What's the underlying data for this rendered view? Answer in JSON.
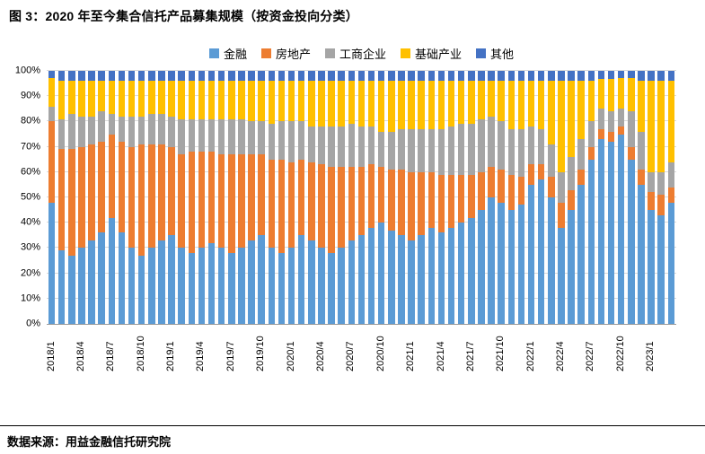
{
  "title": "图 3：2020 年至今集合信托产品募集规模（按资金投向分类）",
  "source": "数据来源：用益金融信托研究院",
  "chart_data": {
    "type": "bar",
    "stacked": true,
    "percent": true,
    "legend_position": "top",
    "grid": true,
    "ylim": [
      0,
      100
    ],
    "yticks": [
      "0%",
      "10%",
      "20%",
      "30%",
      "40%",
      "50%",
      "60%",
      "70%",
      "80%",
      "90%",
      "100%"
    ],
    "xtick_every": 3,
    "categories": [
      "2018/1",
      "2018/2",
      "2018/3",
      "2018/4",
      "2018/5",
      "2018/6",
      "2018/7",
      "2018/8",
      "2018/9",
      "2018/10",
      "2018/11",
      "2018/12",
      "2019/1",
      "2019/2",
      "2019/3",
      "2019/4",
      "2019/5",
      "2019/6",
      "2019/7",
      "2019/8",
      "2019/9",
      "2019/10",
      "2019/11",
      "2019/12",
      "2020/1",
      "2020/2",
      "2020/3",
      "2020/4",
      "2020/5",
      "2020/6",
      "2020/7",
      "2020/8",
      "2020/9",
      "2020/10",
      "2020/11",
      "2020/12",
      "2021/1",
      "2021/2",
      "2021/3",
      "2021/4",
      "2021/5",
      "2021/6",
      "2021/7",
      "2021/8",
      "2021/9",
      "2021/10",
      "2021/11",
      "2021/12",
      "2022/1",
      "2022/2",
      "2022/3",
      "2022/4",
      "2022/5",
      "2022/6",
      "2022/7",
      "2022/8",
      "2022/9",
      "2022/10",
      "2022/11",
      "2022/12",
      "2023/1",
      "2023/2",
      "2023/3"
    ],
    "series": [
      {
        "name": "金融",
        "color": "#5B9BD5",
        "values": [
          48,
          29,
          27,
          30,
          33,
          36,
          42,
          36,
          30,
          27,
          30,
          33,
          35,
          30,
          28,
          30,
          32,
          30,
          28,
          30,
          33,
          35,
          30,
          28,
          30,
          35,
          33,
          30,
          28,
          30,
          33,
          35,
          38,
          40,
          37,
          35,
          33,
          35,
          38,
          36,
          38,
          40,
          42,
          45,
          50,
          48,
          45,
          47,
          55,
          57,
          50,
          38,
          45,
          55,
          65,
          73,
          72,
          75,
          65,
          55,
          45,
          43,
          48
        ]
      },
      {
        "name": "房地产",
        "color": "#ED7D31",
        "values": [
          32,
          40,
          42,
          40,
          38,
          36,
          33,
          36,
          40,
          44,
          41,
          38,
          35,
          37,
          40,
          38,
          36,
          37,
          39,
          37,
          34,
          32,
          35,
          37,
          34,
          30,
          31,
          33,
          34,
          32,
          29,
          27,
          25,
          22,
          24,
          26,
          27,
          25,
          22,
          23,
          21,
          19,
          17,
          15,
          12,
          13,
          14,
          11,
          8,
          6,
          8,
          10,
          8,
          6,
          5,
          4,
          4,
          3,
          5,
          6,
          7,
          8,
          6
        ]
      },
      {
        "name": "工商企业",
        "color": "#A5A5A5",
        "values": [
          6,
          12,
          14,
          12,
          11,
          12,
          8,
          10,
          12,
          11,
          12,
          12,
          12,
          14,
          13,
          13,
          13,
          14,
          14,
          14,
          13,
          13,
          14,
          15,
          16,
          15,
          14,
          15,
          16,
          16,
          17,
          16,
          15,
          14,
          15,
          16,
          17,
          17,
          17,
          18,
          19,
          20,
          20,
          21,
          20,
          19,
          18,
          19,
          15,
          14,
          13,
          12,
          13,
          12,
          10,
          8,
          8,
          7,
          14,
          15,
          8,
          9,
          10
        ]
      },
      {
        "name": "基础产业",
        "color": "#FFC000",
        "values": [
          11,
          15,
          13,
          14,
          14,
          12,
          13,
          14,
          14,
          14,
          13,
          13,
          14,
          15,
          15,
          15,
          15,
          15,
          15,
          15,
          16,
          16,
          17,
          16,
          16,
          16,
          18,
          18,
          18,
          18,
          17,
          18,
          18,
          20,
          20,
          19,
          19,
          19,
          19,
          19,
          18,
          17,
          17,
          15,
          14,
          16,
          19,
          19,
          18,
          19,
          25,
          36,
          30,
          23,
          16,
          12,
          13,
          12,
          13,
          20,
          36,
          36,
          32
        ]
      },
      {
        "name": "其他",
        "color": "#4472C4",
        "values": [
          3,
          4,
          4,
          4,
          4,
          4,
          4,
          4,
          4,
          4,
          4,
          4,
          4,
          4,
          4,
          4,
          4,
          4,
          4,
          4,
          4,
          4,
          4,
          4,
          4,
          4,
          4,
          4,
          4,
          4,
          4,
          4,
          4,
          4,
          4,
          4,
          4,
          4,
          4,
          4,
          4,
          4,
          4,
          4,
          4,
          4,
          4,
          4,
          4,
          4,
          4,
          4,
          4,
          4,
          4,
          3,
          3,
          3,
          3,
          4,
          4,
          4,
          4
        ]
      }
    ]
  }
}
